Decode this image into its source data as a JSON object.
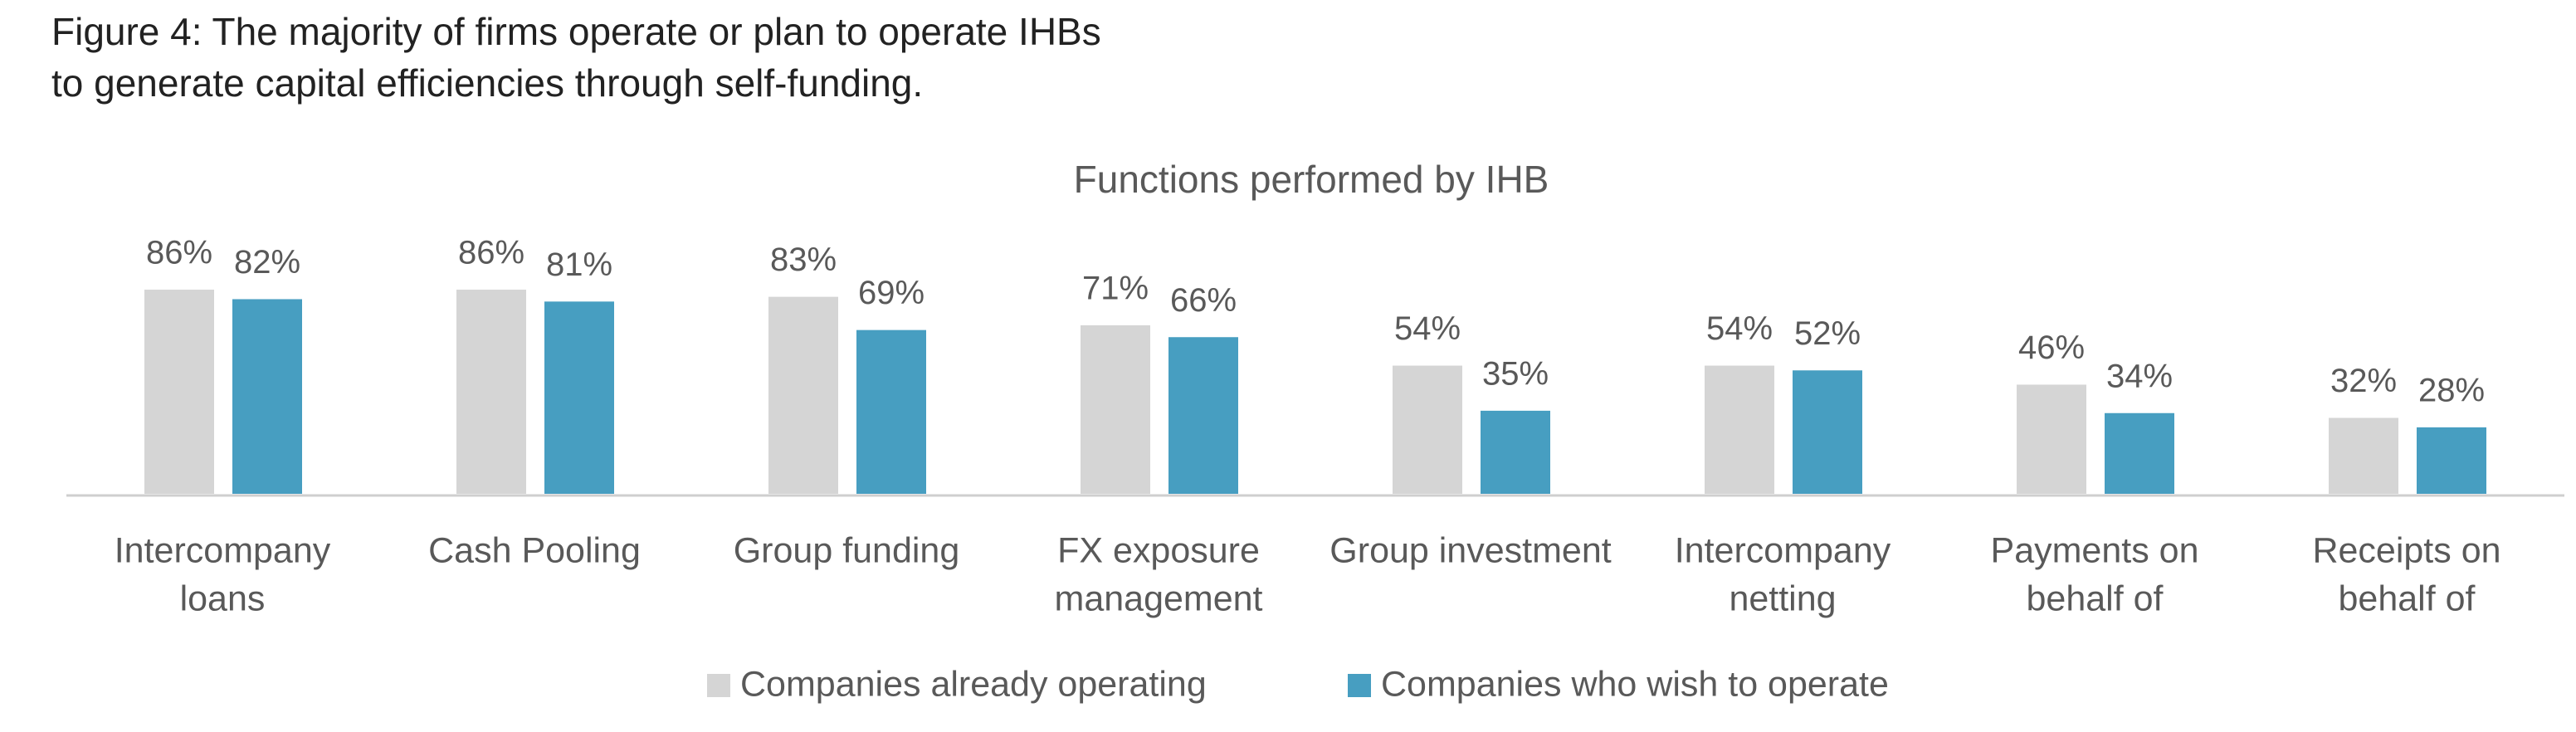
{
  "chart_data": {
    "type": "bar",
    "title": [
      "Figure 4: The majority of firms operate or plan to operate IHBs",
      "to generate capital efficiencies through self-funding."
    ],
    "subtitle": "Functions performed by IHB",
    "categories": [
      [
        "Intercompany",
        "loans"
      ],
      [
        "Cash Pooling"
      ],
      [
        "Group funding"
      ],
      [
        "FX exposure",
        "management"
      ],
      [
        "Group investment"
      ],
      [
        "Intercompany",
        "netting"
      ],
      [
        "Payments on",
        "behalf of"
      ],
      [
        "Receipts on",
        "behalf of"
      ]
    ],
    "series": [
      {
        "name": "Companies already operating",
        "color": "#d5d5d5",
        "values": [
          86,
          86,
          83,
          71,
          54,
          54,
          46,
          32
        ],
        "value_labels": [
          "86%",
          "86%",
          "83%",
          "71%",
          "54%",
          "54%",
          "46%",
          "32%"
        ]
      },
      {
        "name": "Companies who wish to operate",
        "color": "#479ec1",
        "values": [
          82,
          81,
          69,
          66,
          35,
          52,
          34,
          28
        ],
        "value_labels": [
          "82%",
          "81%",
          "69%",
          "66%",
          "35%",
          "52%",
          "34%",
          "28%"
        ]
      }
    ]
  }
}
